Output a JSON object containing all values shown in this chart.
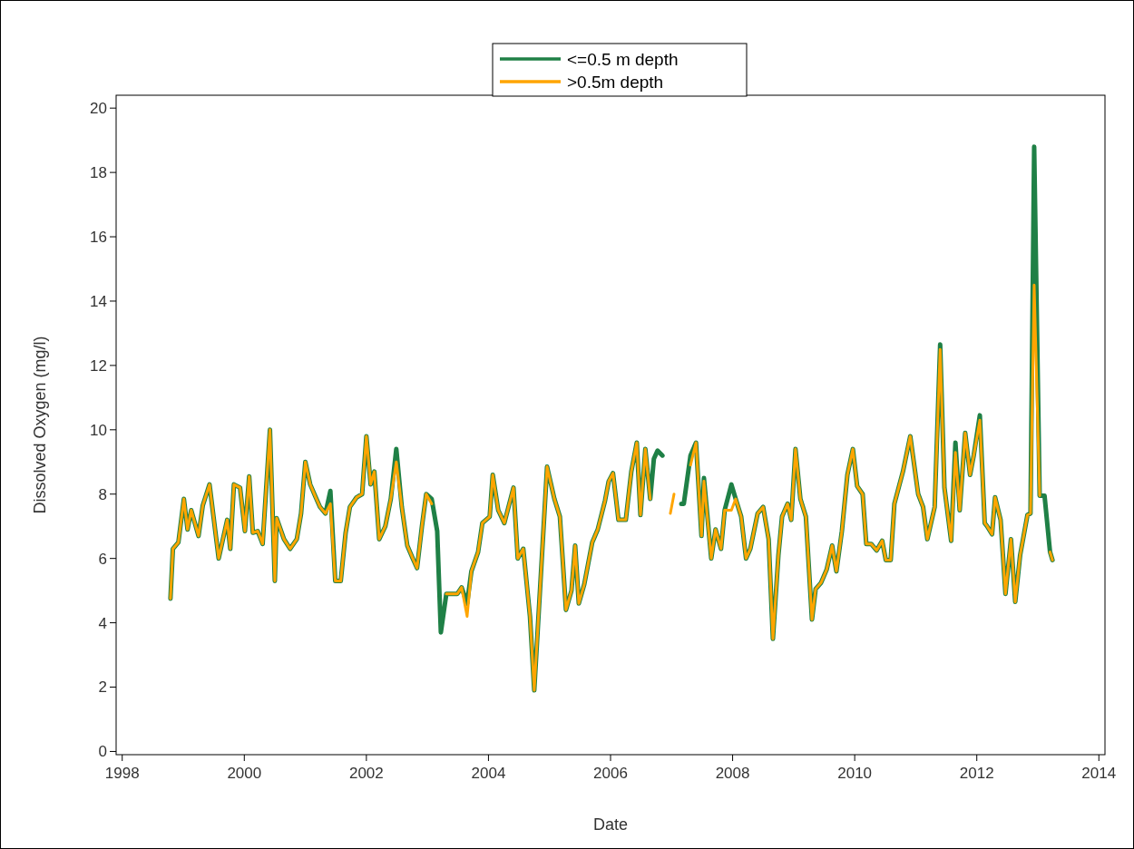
{
  "chart_data": {
    "type": "line",
    "xlabel": "Date",
    "ylabel": "Dissolved Oxygen (mg/l)",
    "xlim": [
      1997.9,
      2014.1
    ],
    "xticks": [
      1998,
      2000,
      2002,
      2004,
      2006,
      2008,
      2010,
      2012,
      2014
    ],
    "ylim": [
      -0.1,
      20.4
    ],
    "yticks": [
      0,
      2,
      4,
      6,
      8,
      10,
      12,
      14,
      16,
      18,
      20
    ],
    "grid": false,
    "legend": "top",
    "marker": "none",
    "x": [
      1998.79,
      1998.83,
      1998.92,
      1999.01,
      1999.07,
      1999.13,
      1999.25,
      1999.32,
      1999.43,
      1999.58,
      1999.72,
      1999.77,
      1999.83,
      1999.93,
      2000.01,
      2000.08,
      2000.14,
      2000.22,
      2000.3,
      2000.42,
      2000.5,
      2000.53,
      2000.65,
      2000.75,
      2000.86,
      2000.93,
      2001.0,
      2001.08,
      2001.17,
      2001.24,
      2001.33,
      2001.41,
      2001.49,
      2001.58,
      2001.66,
      2001.73,
      2001.84,
      2001.93,
      2002.0,
      2002.07,
      2002.13,
      2002.21,
      2002.31,
      2002.4,
      2002.49,
      2002.58,
      2002.67,
      2002.76,
      2002.83,
      2002.91,
      2002.98,
      2003.07,
      2003.16,
      2003.22,
      2003.31,
      2003.49,
      2003.56,
      2003.65,
      2003.72,
      2003.83,
      2003.9,
      2004.02,
      2004.07,
      2004.16,
      2004.26,
      2004.41,
      2004.48,
      2004.57,
      2004.68,
      2004.75,
      2004.96,
      2005.08,
      2005.17,
      2005.27,
      2005.36,
      2005.42,
      2005.48,
      2005.57,
      2005.7,
      2005.79,
      2005.91,
      2005.97,
      2006.04,
      2006.13,
      2006.25,
      2006.34,
      2006.43,
      2006.49,
      2006.57,
      2006.65,
      2006.71,
      2006.77,
      2006.85,
      2006.98,
      2007.04,
      2007.16,
      2007.2,
      2007.31,
      2007.4,
      2007.49,
      2007.53,
      2007.65,
      2007.72,
      2007.81,
      2007.87,
      2007.98,
      2008.05,
      2008.14,
      2008.22,
      2008.29,
      2008.41,
      2008.5,
      2008.59,
      2008.66,
      2008.75,
      2008.81,
      2008.9,
      2008.96,
      2009.03,
      2009.11,
      2009.2,
      2009.3,
      2009.36,
      2009.45,
      2009.54,
      2009.63,
      2009.7,
      2009.79,
      2009.88,
      2009.97,
      2010.04,
      2010.13,
      2010.19,
      2010.27,
      2010.36,
      2010.45,
      2010.51,
      2010.59,
      2010.65,
      2010.79,
      2010.91,
      2011.04,
      2011.12,
      2011.19,
      2011.31,
      2011.4,
      2011.47,
      2011.58,
      2011.65,
      2011.72,
      2011.81,
      2011.89,
      2011.95,
      2012.05,
      2012.13,
      2012.17,
      2012.25,
      2012.3,
      2012.39,
      2012.47,
      2012.56,
      2012.63,
      2012.71,
      2012.83,
      2012.88,
      2012.94,
      2013.03,
      2013.11,
      2013.2,
      2013.24
    ],
    "series": [
      {
        "name": "<=0.5 m depth",
        "color": "#1f8046",
        "values": [
          4.75,
          6.3,
          6.5,
          7.85,
          6.9,
          7.5,
          6.7,
          7.65,
          8.3,
          6.0,
          7.2,
          6.3,
          8.3,
          8.2,
          6.85,
          8.55,
          6.8,
          6.85,
          6.45,
          10.0,
          5.3,
          7.25,
          6.6,
          6.3,
          6.6,
          7.4,
          9.0,
          8.3,
          7.9,
          7.6,
          7.4,
          8.1,
          5.3,
          5.3,
          6.8,
          7.6,
          7.9,
          8.0,
          9.8,
          8.3,
          8.7,
          6.6,
          7.0,
          7.85,
          9.4,
          7.6,
          6.4,
          6.0,
          5.7,
          7.0,
          8.0,
          7.85,
          6.85,
          3.7,
          4.9,
          4.9,
          5.1,
          4.6,
          5.6,
          6.2,
          7.1,
          7.3,
          8.6,
          7.5,
          7.1,
          8.2,
          6.0,
          6.3,
          4.2,
          1.9,
          8.85,
          7.85,
          7.3,
          4.4,
          5.0,
          6.4,
          4.6,
          5.2,
          6.5,
          6.9,
          7.8,
          8.4,
          8.65,
          7.2,
          7.2,
          8.7,
          9.6,
          7.35,
          9.4,
          7.85,
          9.1,
          9.35,
          9.2,
          null,
          null,
          7.7,
          7.7,
          9.2,
          9.6,
          6.7,
          8.5,
          6.0,
          6.9,
          6.3,
          7.5,
          8.3,
          7.85,
          7.3,
          6.0,
          6.3,
          7.4,
          7.6,
          6.6,
          3.5,
          6.1,
          7.3,
          7.7,
          7.2,
          9.4,
          7.85,
          7.3,
          4.1,
          5.05,
          5.25,
          5.65,
          6.4,
          5.6,
          6.85,
          8.6,
          9.4,
          8.25,
          8.0,
          6.45,
          6.45,
          6.25,
          6.55,
          5.95,
          5.95,
          7.7,
          8.7,
          9.8,
          8.0,
          7.6,
          6.6,
          7.6,
          12.65,
          8.2,
          6.55,
          9.6,
          7.5,
          9.9,
          8.6,
          9.2,
          10.45,
          7.1,
          7.0,
          6.75,
          7.9,
          7.2,
          4.9,
          6.6,
          4.65,
          6.1,
          7.35,
          7.4,
          18.8,
          7.95,
          7.95,
          6.2,
          5.95
        ]
      },
      {
        "name": ">0.5m depth",
        "color": "#ffa500",
        "values": [
          4.75,
          6.3,
          6.5,
          7.85,
          6.9,
          7.5,
          6.7,
          7.65,
          8.3,
          6.0,
          7.2,
          6.3,
          8.3,
          8.2,
          6.85,
          8.55,
          6.8,
          6.85,
          6.45,
          10.0,
          5.3,
          7.25,
          6.6,
          6.3,
          6.6,
          7.4,
          9.0,
          8.3,
          7.9,
          7.6,
          7.4,
          7.7,
          5.3,
          5.3,
          6.8,
          7.6,
          7.9,
          8.0,
          9.8,
          8.3,
          8.7,
          6.6,
          7.0,
          7.85,
          9.0,
          7.6,
          6.4,
          6.0,
          5.7,
          7.0,
          8.0,
          7.7,
          null,
          null,
          4.9,
          4.9,
          5.1,
          4.2,
          5.6,
          6.2,
          7.1,
          7.3,
          8.6,
          7.5,
          7.1,
          8.2,
          6.0,
          6.3,
          4.2,
          1.9,
          8.85,
          7.85,
          7.3,
          4.4,
          5.0,
          6.4,
          4.6,
          5.2,
          6.5,
          6.9,
          7.8,
          8.4,
          8.65,
          7.2,
          7.2,
          8.7,
          9.6,
          7.35,
          9.4,
          7.85,
          null,
          null,
          null,
          7.4,
          8.0,
          null,
          null,
          8.9,
          9.6,
          6.7,
          8.4,
          6.0,
          6.9,
          6.3,
          7.5,
          7.5,
          7.85,
          7.3,
          6.0,
          6.3,
          7.4,
          7.6,
          6.6,
          3.5,
          6.1,
          7.3,
          7.7,
          7.2,
          9.4,
          7.85,
          7.3,
          4.1,
          5.05,
          5.25,
          5.65,
          6.4,
          5.6,
          6.85,
          8.6,
          9.4,
          8.25,
          8.0,
          6.45,
          6.45,
          6.25,
          6.55,
          5.95,
          5.95,
          7.7,
          8.7,
          9.8,
          8.0,
          7.6,
          6.6,
          7.6,
          12.5,
          8.2,
          6.55,
          9.3,
          7.5,
          9.9,
          8.6,
          9.2,
          10.3,
          7.1,
          7.0,
          6.75,
          7.9,
          7.2,
          4.9,
          6.6,
          4.65,
          6.1,
          7.35,
          7.4,
          14.5,
          7.95,
          null,
          6.2,
          5.95
        ]
      }
    ]
  }
}
